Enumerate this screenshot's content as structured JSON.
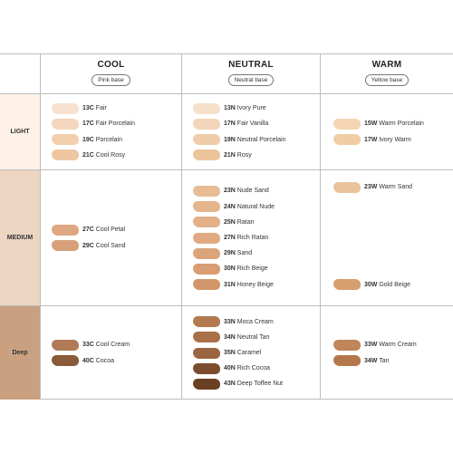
{
  "columns": [
    {
      "title": "COOL",
      "base": "Pink base"
    },
    {
      "title": "NEUTRAL",
      "base": "Neutral base"
    },
    {
      "title": "WARM",
      "base": "Yellow base"
    }
  ],
  "rows": [
    {
      "label": "LIGHT",
      "bg": "#fdf1e8",
      "cells": [
        [
          {
            "code": "13C",
            "name": "Fair",
            "color": "#f7e1cf"
          },
          {
            "code": "17C",
            "name": "Fair Porcelain",
            "color": "#f3d6bd"
          },
          {
            "code": "19C",
            "name": "Porcelain",
            "color": "#f1cfae"
          },
          {
            "code": "21C",
            "name": "Cool Rosy",
            "color": "#efc6a2"
          }
        ],
        [
          {
            "code": "13N",
            "name": "Ivory Pure",
            "color": "#f6e0c9"
          },
          {
            "code": "17N",
            "name": "Fair Vanilla",
            "color": "#f2d5b8"
          },
          {
            "code": "19N",
            "name": "Neutral Porcelain",
            "color": "#efcda8"
          },
          {
            "code": "21N",
            "name": "Rosy",
            "color": "#ecc49c"
          }
        ],
        [
          {
            "code": "15W",
            "name": "Warm Porcelain",
            "color": "#f4d6b5"
          },
          {
            "code": "17W",
            "name": "Ivory Warm",
            "color": "#f0cda4"
          }
        ]
      ]
    },
    {
      "label": "MEDIUM",
      "bg": "#ecd5c1",
      "cells": [
        [
          {
            "code": "27C",
            "name": "Cool Petal",
            "color": "#dea781"
          },
          {
            "code": "29C",
            "name": "Cool Sand",
            "color": "#d7a07a"
          }
        ],
        [
          {
            "code": "23N",
            "name": "Nude Sand",
            "color": "#e8bc95"
          },
          {
            "code": "24N",
            "name": "Natural Nude",
            "color": "#e5b68d"
          },
          {
            "code": "25N",
            "name": "Ratan",
            "color": "#e2b088"
          },
          {
            "code": "27N",
            "name": "Rich Ratan",
            "color": "#dfaa81"
          },
          {
            "code": "29N",
            "name": "Sand",
            "color": "#dba47a"
          },
          {
            "code": "30N",
            "name": "Rich Beige",
            "color": "#d89d73"
          },
          {
            "code": "31N",
            "name": "Honey Beige",
            "color": "#d3966a"
          }
        ],
        [
          {
            "code": "23W",
            "name": "Warm Sand",
            "color": "#e9c39c"
          },
          {
            "code": "30W",
            "name": "Gold Beige",
            "color": "#d69f6f"
          }
        ]
      ]
    },
    {
      "label": "Deep",
      "bg": "#c9a181",
      "cells": [
        [
          {
            "code": "33C",
            "name": "Cool Cream",
            "color": "#b07a56"
          },
          {
            "code": "40C",
            "name": "Cocoa",
            "color": "#8a5a3b"
          }
        ],
        [
          {
            "code": "33N",
            "name": "Moca Cream",
            "color": "#b3794f"
          },
          {
            "code": "34N",
            "name": "Neutral Tan",
            "color": "#a96f48"
          },
          {
            "code": "35N",
            "name": "Caramel",
            "color": "#9c6541"
          },
          {
            "code": "40N",
            "name": "Rich Cocoa",
            "color": "#7c4c2e"
          },
          {
            "code": "43N",
            "name": "Deep Toffee Nut",
            "color": "#6a3f24"
          }
        ],
        [
          {
            "code": "33W",
            "name": "Warm Cream",
            "color": "#c08559"
          },
          {
            "code": "34W",
            "name": "Tan",
            "color": "#b5774c"
          }
        ]
      ]
    }
  ]
}
